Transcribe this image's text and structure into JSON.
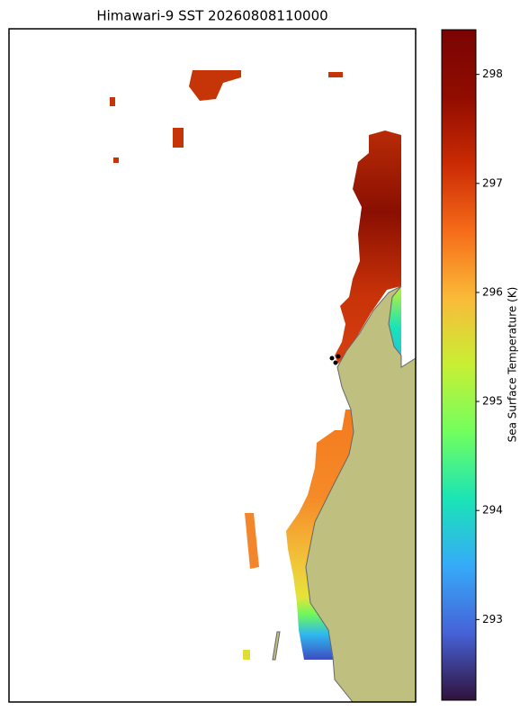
{
  "title": "Himawari-9 SST 20260808110000",
  "colorbar": {
    "label": "Sea Surface Temperature (K)",
    "lim": [
      292.26,
      298.41
    ],
    "ticks": [
      293,
      294,
      295,
      296,
      297,
      298
    ]
  }
}
